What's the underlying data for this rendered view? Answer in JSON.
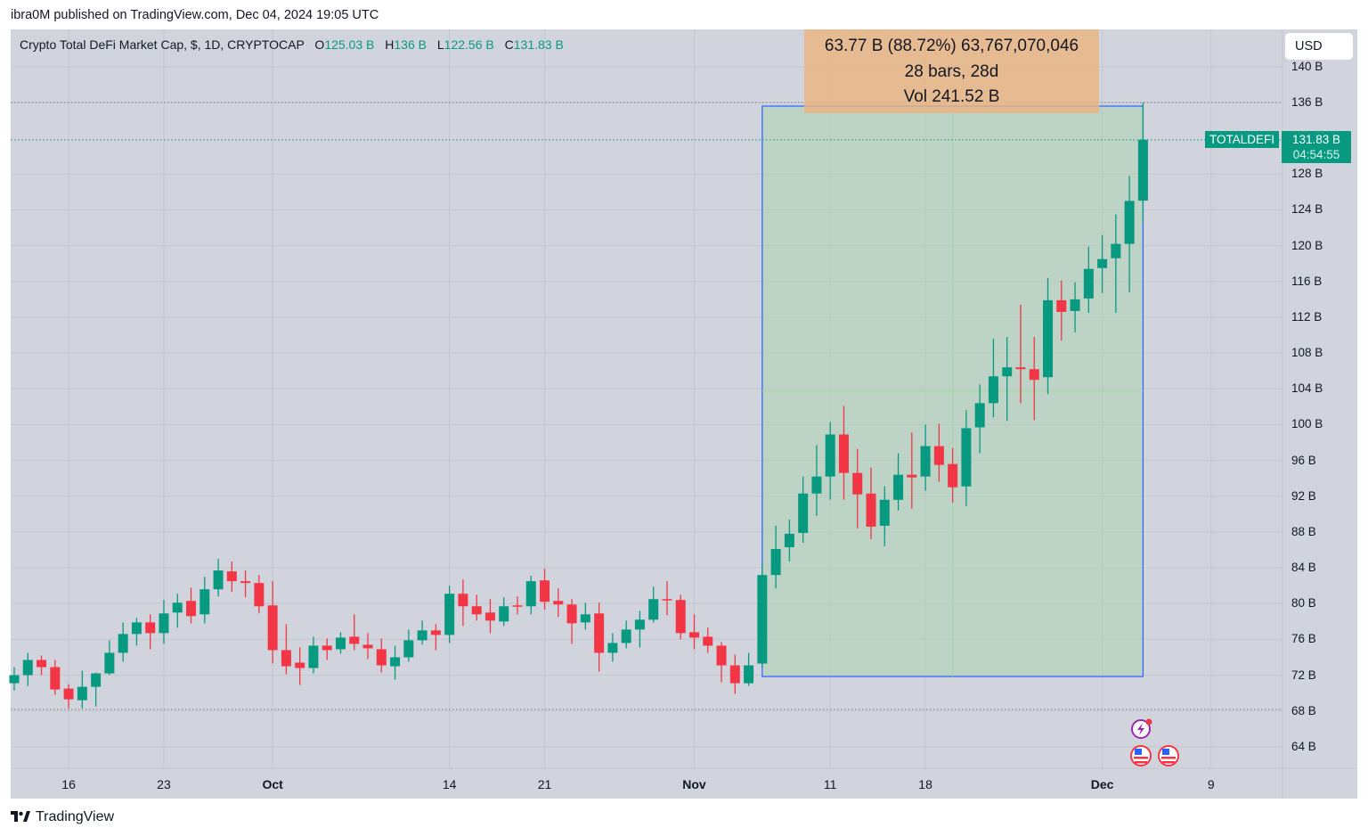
{
  "published": "ibra0M published on TradingView.com, Dec 04, 2024 19:05 UTC",
  "legend": {
    "title": "Crypto Total DeFi Market Cap, $, 1D, CRYPTOCAP",
    "o_label": "O",
    "o_value": "125.03 B",
    "h_label": "H",
    "h_value": "136 B",
    "l_label": "L",
    "l_value": "122.56 B",
    "c_label": "C",
    "c_value": "131.83 B"
  },
  "currency_button": "USD",
  "measure": {
    "line1": "63.77 B (88.72%) 63,767,070,046",
    "line2": "28 bars, 28d",
    "line3": "Vol 241.52 B",
    "from_price": 71.85,
    "to_price": 135.6,
    "from_index": 55,
    "to_index": 83
  },
  "symbol_tag": "TOTALDEFI",
  "last_price": "131.83 B",
  "countdown": "04:54:55",
  "footer_brand": "TradingView",
  "colors": {
    "up": "#089981",
    "down": "#f23645",
    "measure_box": "#2962ff",
    "background": "#d1d4dc"
  },
  "chart_data": {
    "type": "candlestick",
    "title": "Crypto Total DeFi Market Cap, $, 1D, CRYPTOCAP",
    "ylabel": "USD (B)",
    "ylim": [
      62,
      141
    ],
    "grid": true,
    "first_date": "2024-09-12",
    "last_date": "2024-12-04",
    "y_ticks": [
      "140 B",
      "136 B",
      "128 B",
      "124 B",
      "120 B",
      "116 B",
      "112 B",
      "108 B",
      "104 B",
      "100 B",
      "96 B",
      "92 B",
      "88 B",
      "84 B",
      "80 B",
      "76 B",
      "72 B",
      "68 B",
      "64 B"
    ],
    "y_tick_values": [
      140,
      136,
      128,
      124,
      120,
      116,
      112,
      108,
      104,
      100,
      96,
      92,
      88,
      84,
      80,
      76,
      72,
      68,
      64
    ],
    "x_ticks": [
      {
        "label": "16",
        "index": 4,
        "bold": false
      },
      {
        "label": "23",
        "index": 11,
        "bold": false
      },
      {
        "label": "Oct",
        "index": 19,
        "bold": true
      },
      {
        "label": "14",
        "index": 32,
        "bold": false
      },
      {
        "label": "21",
        "index": 39,
        "bold": false
      },
      {
        "label": "Nov",
        "index": 50,
        "bold": true
      },
      {
        "label": "11",
        "index": 60,
        "bold": false
      },
      {
        "label": "18",
        "index": 67,
        "bold": false
      },
      {
        "label": "Dec",
        "index": 80,
        "bold": true
      },
      {
        "label": "9",
        "index": 88,
        "bold": false
      }
    ],
    "ohlc": [
      [
        71.1,
        72.9,
        70.3,
        72.0
      ],
      [
        72.0,
        74.5,
        70.8,
        73.7
      ],
      [
        73.7,
        74.2,
        72.0,
        72.9
      ],
      [
        72.9,
        73.7,
        69.8,
        70.4
      ],
      [
        70.5,
        71.0,
        68.3,
        69.3
      ],
      [
        69.2,
        72.5,
        68.3,
        70.7
      ],
      [
        70.7,
        72.3,
        68.5,
        72.2
      ],
      [
        72.2,
        75.9,
        72.0,
        74.5
      ],
      [
        74.5,
        77.9,
        73.5,
        76.6
      ],
      [
        76.6,
        78.4,
        75.3,
        77.9
      ],
      [
        77.9,
        78.8,
        74.9,
        76.7
      ],
      [
        76.7,
        80.4,
        75.5,
        78.9
      ],
      [
        79.0,
        81.1,
        77.3,
        80.1
      ],
      [
        80.3,
        81.8,
        77.8,
        78.6
      ],
      [
        78.8,
        83.0,
        77.8,
        81.6
      ],
      [
        81.6,
        85.0,
        80.8,
        83.7
      ],
      [
        83.6,
        84.7,
        81.3,
        82.5
      ],
      [
        82.5,
        83.7,
        80.7,
        82.3
      ],
      [
        82.3,
        83.2,
        78.9,
        79.7
      ],
      [
        79.8,
        82.5,
        73.3,
        74.8
      ],
      [
        74.8,
        77.7,
        72.1,
        73.0
      ],
      [
        73.4,
        75.1,
        70.9,
        72.8
      ],
      [
        72.8,
        76.3,
        72.2,
        75.3
      ],
      [
        75.3,
        76.1,
        73.7,
        74.8
      ],
      [
        74.9,
        76.8,
        74.4,
        76.2
      ],
      [
        76.3,
        78.8,
        74.8,
        75.5
      ],
      [
        75.4,
        76.7,
        73.8,
        75.0
      ],
      [
        74.9,
        76.1,
        72.3,
        73.1
      ],
      [
        73.0,
        75.3,
        71.5,
        74.0
      ],
      [
        74.0,
        77.1,
        73.5,
        75.9
      ],
      [
        75.9,
        78.1,
        75.4,
        77.0
      ],
      [
        77.0,
        77.7,
        74.8,
        76.5
      ],
      [
        76.5,
        82.0,
        75.6,
        81.1
      ],
      [
        81.1,
        82.7,
        77.5,
        79.7
      ],
      [
        79.7,
        81.0,
        78.1,
        78.8
      ],
      [
        79.0,
        80.5,
        76.7,
        78.1
      ],
      [
        78.0,
        80.7,
        77.5,
        79.7
      ],
      [
        79.8,
        80.8,
        78.8,
        79.75
      ],
      [
        79.7,
        83.1,
        78.8,
        82.5
      ],
      [
        82.6,
        83.9,
        79.3,
        80.2
      ],
      [
        80.3,
        81.7,
        78.5,
        79.9
      ],
      [
        79.9,
        80.5,
        75.5,
        77.8
      ],
      [
        77.9,
        80.1,
        77.1,
        78.8
      ],
      [
        78.9,
        80.1,
        72.4,
        74.5
      ],
      [
        74.5,
        76.7,
        73.5,
        75.6
      ],
      [
        75.6,
        78.1,
        75.0,
        77.1
      ],
      [
        77.1,
        79.2,
        75.1,
        78.2
      ],
      [
        78.2,
        81.9,
        77.9,
        80.5
      ],
      [
        80.5,
        82.5,
        78.7,
        80.4
      ],
      [
        80.4,
        81.0,
        76.0,
        76.7
      ],
      [
        76.8,
        78.8,
        74.9,
        76.2
      ],
      [
        76.3,
        77.3,
        74.5,
        75.3
      ],
      [
        75.3,
        75.7,
        71.2,
        73.1
      ],
      [
        73.1,
        74.3,
        69.9,
        71.1
      ],
      [
        71.1,
        74.5,
        70.8,
        73.1
      ],
      [
        73.3,
        84.5,
        72.9,
        83.2
      ],
      [
        83.2,
        88.7,
        81.7,
        86.1
      ],
      [
        86.3,
        89.4,
        84.7,
        87.8
      ],
      [
        87.9,
        94.2,
        86.8,
        92.3
      ],
      [
        92.3,
        97.7,
        89.8,
        94.2
      ],
      [
        94.2,
        100.3,
        91.6,
        98.9
      ],
      [
        98.9,
        102.1,
        91.6,
        94.6
      ],
      [
        94.6,
        97.3,
        88.4,
        92.2
      ],
      [
        92.3,
        95.2,
        87.2,
        88.6
      ],
      [
        88.7,
        93.1,
        86.4,
        91.6
      ],
      [
        91.6,
        96.8,
        90.4,
        94.4
      ],
      [
        94.4,
        99.1,
        90.6,
        94.1
      ],
      [
        94.2,
        100.0,
        92.6,
        97.6
      ],
      [
        97.6,
        100.1,
        93.6,
        95.5
      ],
      [
        95.6,
        97.4,
        91.3,
        93.0
      ],
      [
        93.1,
        101.6,
        90.9,
        99.6
      ],
      [
        99.7,
        104.5,
        96.8,
        102.4
      ],
      [
        102.4,
        109.6,
        100.8,
        105.4
      ],
      [
        105.4,
        109.8,
        100.4,
        106.4
      ],
      [
        106.4,
        113.4,
        102.4,
        106.2
      ],
      [
        106.2,
        109.8,
        100.5,
        105.0
      ],
      [
        105.3,
        116.4,
        103.4,
        113.9
      ],
      [
        113.9,
        116.1,
        109.4,
        112.6
      ],
      [
        112.7,
        115.9,
        110.3,
        114.0
      ],
      [
        114.1,
        119.9,
        112.5,
        117.4
      ],
      [
        117.5,
        121.2,
        114.7,
        118.5
      ],
      [
        118.6,
        123.5,
        112.5,
        120.2
      ],
      [
        120.2,
        127.8,
        114.8,
        125.0
      ],
      [
        125.03,
        136.0,
        122.56,
        131.83
      ]
    ]
  }
}
